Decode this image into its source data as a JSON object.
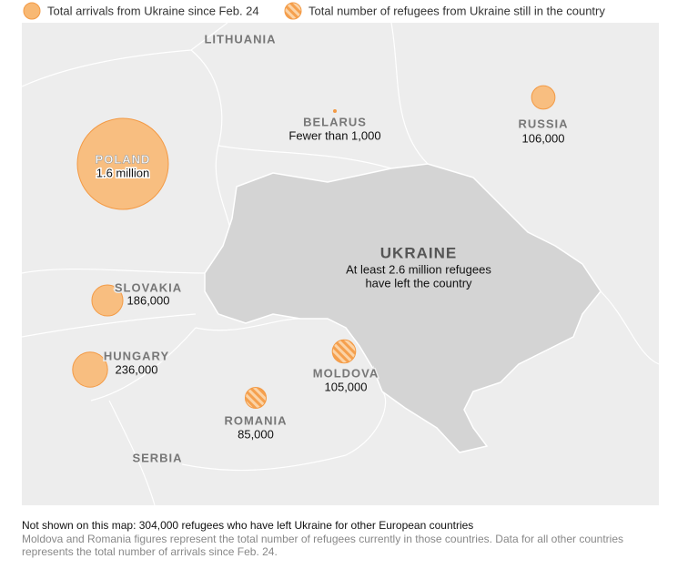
{
  "legend": {
    "solid": "Total arrivals from Ukraine since Feb. 24",
    "hatched": "Total number of refugees from Ukraine still in the country"
  },
  "map": {
    "countries": [
      {
        "name": "POLAND",
        "value_label": "1.6 million",
        "value": 1600000,
        "style": "solid"
      },
      {
        "name": "RUSSIA",
        "value_label": "106,000",
        "value": 106000,
        "style": "solid"
      },
      {
        "name": "BELARUS",
        "value_label": "Fewer than 1,000",
        "style": "solid"
      },
      {
        "name": "SLOVAKIA",
        "value_label": "186,000",
        "value": 186000,
        "style": "solid"
      },
      {
        "name": "HUNGARY",
        "value_label": "236,000",
        "value": 236000,
        "style": "solid"
      },
      {
        "name": "MOLDOVA",
        "value_label": "105,000",
        "value": 105000,
        "style": "hatched"
      },
      {
        "name": "ROMANIA",
        "value_label": "85,000",
        "value": 85000,
        "style": "hatched"
      }
    ],
    "ukraine": {
      "name": "UKRAINE",
      "lines": [
        "At least 2.6 million refugees",
        "have left the country"
      ]
    },
    "other_labels": [
      "LITHUANIA",
      "SERBIA"
    ]
  },
  "footer": {
    "note": "Not shown on this map: 304,000 refugees who have left Ukraine for other European countries",
    "source_lines": [
      "Moldova and Romania figures represent the total number of refugees currently in those countries. Data for all other countries",
      "represents the total number of arrivals since Feb. 24."
    ]
  }
}
